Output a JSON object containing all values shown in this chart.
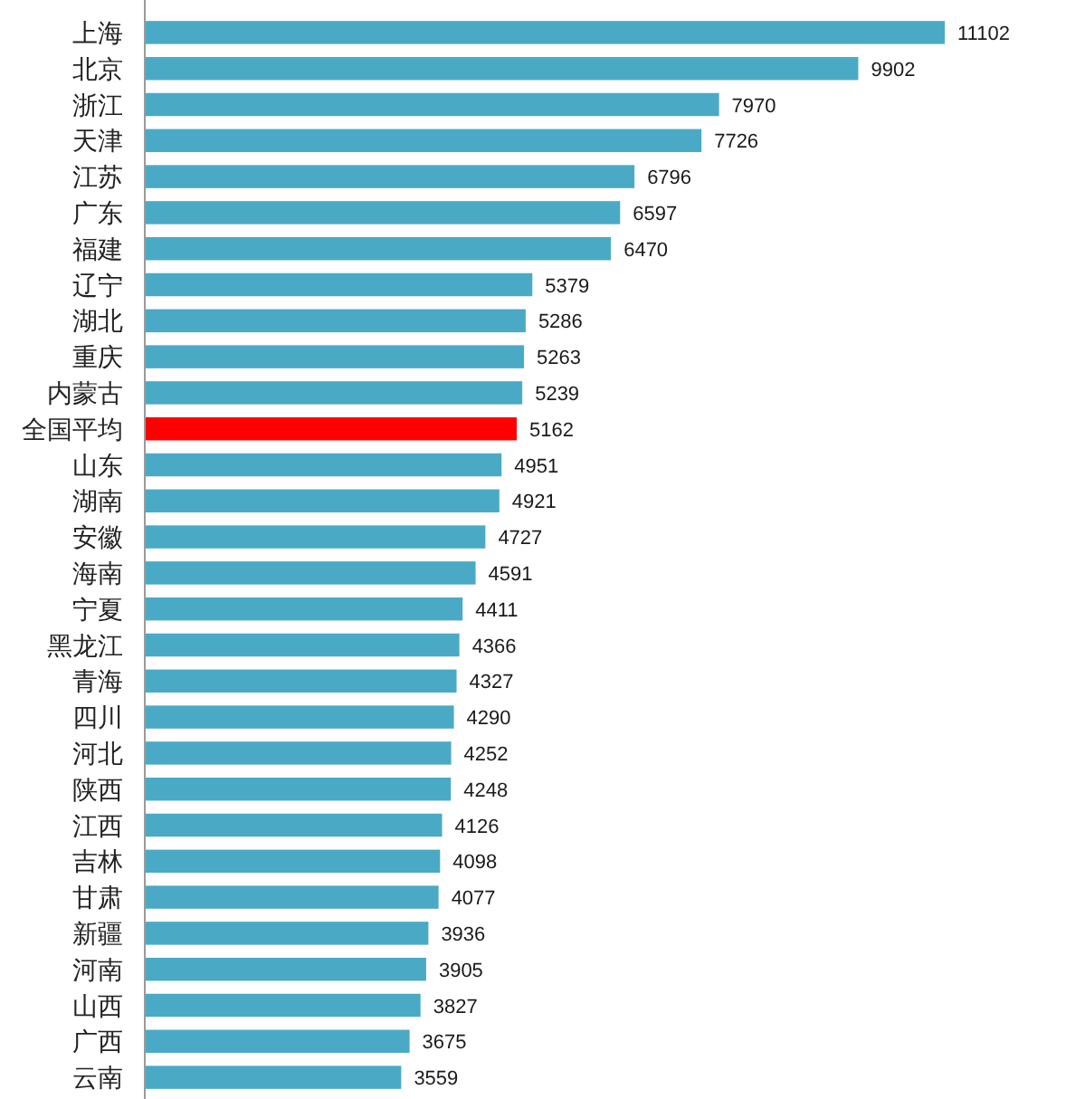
{
  "chart_data": {
    "type": "bar",
    "orientation": "horizontal",
    "data_labels": true,
    "categories": [
      "上海",
      "北京",
      "浙江",
      "天津",
      "江苏",
      "广东",
      "福建",
      "辽宁",
      "湖北",
      "重庆",
      "内蒙古",
      "全国平均",
      "山东",
      "湖南",
      "安徽",
      "海南",
      "宁夏",
      "黑龙江",
      "青海",
      "四川",
      "河北",
      "陕西",
      "江西",
      "吉林",
      "甘肃",
      "新疆",
      "河南",
      "山西",
      "广西",
      "云南"
    ],
    "values": [
      11102,
      9902,
      7970,
      7726,
      6796,
      6597,
      6470,
      5379,
      5286,
      5263,
      5239,
      5162,
      4951,
      4921,
      4727,
      4591,
      4411,
      4366,
      4327,
      4290,
      4252,
      4248,
      4126,
      4098,
      4077,
      3936,
      3905,
      3827,
      3675,
      3559
    ],
    "colors": [
      "#4aaac6",
      "#4aaac6",
      "#4aaac6",
      "#4aaac6",
      "#4aaac6",
      "#4aaac6",
      "#4aaac6",
      "#4aaac6",
      "#4aaac6",
      "#4aaac6",
      "#4aaac6",
      "#ff0000",
      "#4aaac6",
      "#4aaac6",
      "#4aaac6",
      "#4aaac6",
      "#4aaac6",
      "#4aaac6",
      "#4aaac6",
      "#4aaac6",
      "#4aaac6",
      "#4aaac6",
      "#4aaac6",
      "#4aaac6",
      "#4aaac6",
      "#4aaac6",
      "#4aaac6",
      "#4aaac6",
      "#4aaac6",
      "#4aaac6"
    ]
  }
}
